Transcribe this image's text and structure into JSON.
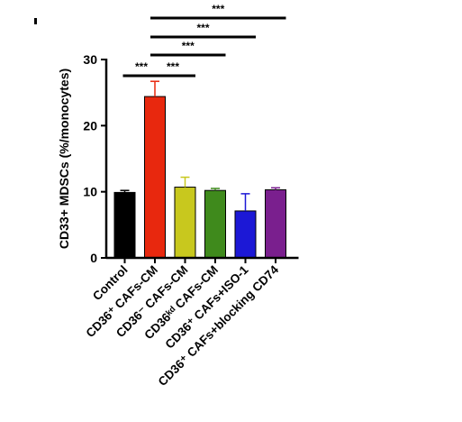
{
  "chart_data": {
    "type": "bar",
    "ylabel": "CD33+ MDSCs (%/monocytes)",
    "xlabel": "",
    "ylim": [
      0,
      30
    ],
    "yticks": [
      0,
      10,
      20,
      30
    ],
    "categories": [
      "Control",
      "CD36⁺ CAFs-CM",
      "CD36⁻ CAFs-CM",
      "CD36ᵏᵈ CAFs-CM",
      "CD36⁺ CAFs+ISO-1",
      "CD36⁺ CAFs+blocking CD74"
    ],
    "values": [
      9.9,
      24.4,
      10.7,
      10.2,
      7.1,
      10.3
    ],
    "errors": [
      0.3,
      2.3,
      1.5,
      0.3,
      2.6,
      0.3
    ],
    "colors": [
      "#000000",
      "#e8280e",
      "#c8c81e",
      "#3f8a1c",
      "#1c18d6",
      "#7a1f8e"
    ],
    "significance": [
      {
        "from": 1,
        "to": 5,
        "label": "***"
      },
      {
        "from": 1,
        "to": 4,
        "label": "***"
      },
      {
        "from": 1,
        "to": 3,
        "label": "***"
      },
      {
        "from": 1,
        "to": 2,
        "label": "***"
      },
      {
        "from": 0,
        "to": 1,
        "label": "***"
      }
    ]
  }
}
